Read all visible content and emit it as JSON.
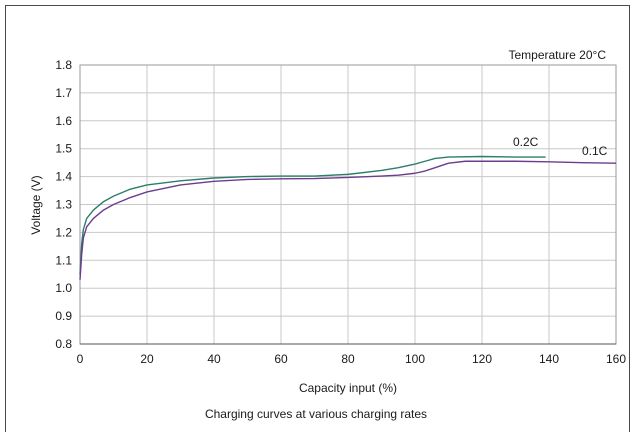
{
  "chart_data": {
    "type": "line",
    "title": "",
    "caption": "Charging curves at various charging rates",
    "annotation": "Temperature 20°C",
    "xlabel": "Capacity input (%)",
    "ylabel": "Voltage (V)",
    "xlim": [
      0,
      160
    ],
    "ylim": [
      0.8,
      1.8
    ],
    "x_ticks": [
      0,
      20,
      40,
      60,
      80,
      100,
      120,
      140,
      160
    ],
    "y_ticks": [
      0.8,
      0.9,
      1.0,
      1.1,
      1.2,
      1.3,
      1.4,
      1.5,
      1.6,
      1.7,
      1.8
    ],
    "grid": true,
    "colors": {
      "0.2C": "#2e7d6b",
      "0.1C": "#6a3d8f",
      "grid": "#c8c8c8"
    },
    "series": [
      {
        "name": "0.2C",
        "x": [
          0,
          0.5,
          1,
          2,
          4,
          7,
          10,
          15,
          20,
          30,
          40,
          50,
          60,
          70,
          80,
          90,
          95,
          100,
          103,
          106,
          110,
          120,
          130,
          139
        ],
        "y": [
          1.05,
          1.16,
          1.21,
          1.25,
          1.28,
          1.31,
          1.33,
          1.355,
          1.37,
          1.385,
          1.395,
          1.4,
          1.402,
          1.402,
          1.408,
          1.422,
          1.432,
          1.445,
          1.455,
          1.465,
          1.47,
          1.472,
          1.47,
          1.47
        ]
      },
      {
        "name": "0.1C",
        "x": [
          0,
          0.5,
          1,
          2,
          4,
          7,
          10,
          15,
          20,
          30,
          40,
          50,
          60,
          70,
          80,
          90,
          95,
          100,
          103,
          106,
          110,
          115,
          120,
          130,
          140,
          150,
          160
        ],
        "y": [
          1.03,
          1.12,
          1.18,
          1.22,
          1.25,
          1.28,
          1.3,
          1.325,
          1.345,
          1.37,
          1.383,
          1.39,
          1.392,
          1.393,
          1.397,
          1.402,
          1.405,
          1.412,
          1.42,
          1.432,
          1.448,
          1.455,
          1.455,
          1.455,
          1.453,
          1.45,
          1.448
        ]
      }
    ]
  }
}
